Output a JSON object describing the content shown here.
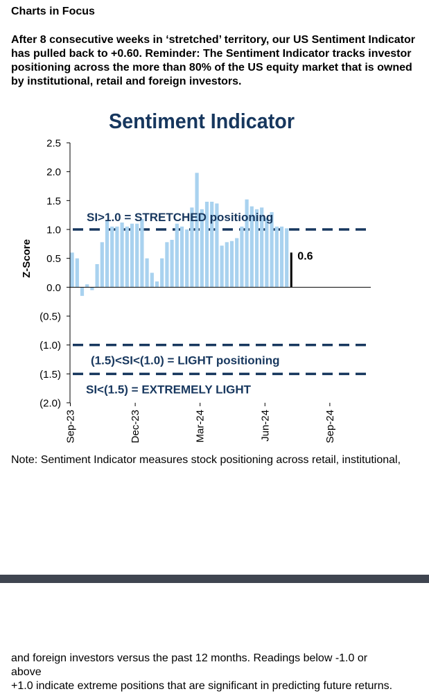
{
  "page": {
    "section_title": "Charts in Focus",
    "intro": "After 8 consecutive weeks in ‘stretched’ territory, our US Sentiment Indicator has pulled back to +0.60. Reminder: The Sentiment Indicator tracks investor positioning across the more than 80% of the US equity market that is owned by institutional, retail and foreign investors.",
    "note_part1": "Note: Sentiment Indicator measures stock positioning across retail, institutional,",
    "note_part2_line1": "and foreign investors versus the past 12 months. Readings below -1.0 or",
    "note_part2_line2": "above",
    "note_part2_line3": "+1.0 indicate extreme positions that are significant in predicting future returns."
  },
  "colors": {
    "bar": "#a9d2ef",
    "title": "#17375e",
    "dash_line": "#17375e",
    "latest_bar": "#000000",
    "page_break": "#3f4550"
  },
  "chart_data": {
    "type": "bar",
    "title": "Sentiment Indicator",
    "ylabel": "Z-Score",
    "xlabel": "",
    "ylim": [
      -2.0,
      2.5
    ],
    "yticks": [
      2.5,
      2.0,
      1.5,
      1.0,
      0.5,
      0.0,
      -0.5,
      -1.0,
      -1.5,
      -2.0
    ],
    "ytick_labels": [
      "2.5",
      "2.0",
      "1.5",
      "1.0",
      "0.5",
      "0.0",
      "(0.5)",
      "(1.0)",
      "(1.5)",
      "(2.0)"
    ],
    "xtick_labels": [
      "Sep-23",
      "Dec-23",
      "Mar-24",
      "Jun-24",
      "Sep-24"
    ],
    "weeks_per_xtick": 13,
    "grid": false,
    "values": [
      0.6,
      0.5,
      -0.15,
      0.05,
      -0.05,
      0.4,
      0.78,
      1.15,
      1.05,
      1.05,
      1.12,
      1.05,
      1.1,
      1.1,
      1.18,
      0.5,
      0.25,
      0.1,
      0.5,
      0.78,
      0.82,
      1.1,
      1.05,
      1.0,
      1.38,
      1.98,
      1.35,
      1.48,
      1.48,
      1.45,
      0.72,
      0.78,
      0.8,
      0.85,
      1.05,
      1.52,
      1.4,
      1.35,
      1.38,
      1.2,
      1.3,
      1.05,
      1.05,
      1.02
    ],
    "latest": {
      "value": 0.6,
      "label": "0.6"
    },
    "reference_lines": [
      {
        "y": 1.0,
        "label": "SI>1.0 = STRETCHED positioning"
      },
      {
        "y": -1.0,
        "label": "(1.5)<SI<(1.0) = LIGHT positioning"
      },
      {
        "y": -1.5,
        "label": "SI<(1.5) = EXTREMELY LIGHT"
      }
    ]
  }
}
